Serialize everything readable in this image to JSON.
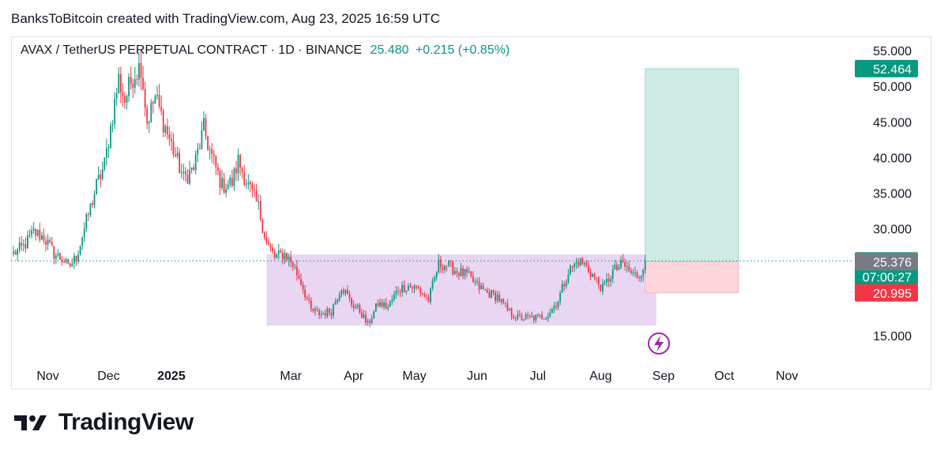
{
  "attribution": "BanksToBitcoin created with TradingView.com, Aug 23, 2025 16:59 UTC",
  "header": {
    "symbol": "AVAX / TetherUS PERPETUAL CONTRACT · 1D · BINANCE",
    "price": "25.480",
    "change": "+0.215 (+0.85%)"
  },
  "brand": {
    "name": "TradingView"
  },
  "colors": {
    "up": "#089981",
    "down": "#f23645",
    "range_box": "#e1c8ee",
    "target_zone": "#cfebe6",
    "stop_zone": "#fbd6da",
    "current_price": "#089981"
  },
  "icons": {
    "event": "lightning-icon",
    "logo": "tradingview-logo-icon"
  },
  "chart_data": {
    "type": "candlestick",
    "title": "AVAX / TetherUS PERPETUAL CONTRACT · 1D · BINANCE",
    "ylim": [
      15,
      55
    ],
    "y_ticks": [
      "55.000",
      "50.000",
      "45.000",
      "40.000",
      "35.000",
      "30.000",
      "15.000"
    ],
    "x_ticks": [
      "Nov",
      "Dec",
      "2025",
      "Mar",
      "Apr",
      "May",
      "Jun",
      "Jul",
      "Aug",
      "Sep",
      "Oct",
      "Nov"
    ],
    "x_range": [
      "2024-10-15",
      "2025-11-22"
    ],
    "price_labels": [
      {
        "value": "52.464",
        "kind": "target"
      },
      {
        "value": "25.480",
        "sub": "07:00:27",
        "kind": "current"
      },
      {
        "value": "25.376",
        "kind": "entry"
      },
      {
        "value": "20.995",
        "kind": "stop"
      }
    ],
    "close_series": [
      [
        "2024-10-15",
        26.5
      ],
      [
        "2024-10-20",
        27.5
      ],
      [
        "2024-10-25",
        29.5
      ],
      [
        "2024-10-30",
        28.8
      ],
      [
        "2024-11-04",
        26.5
      ],
      [
        "2024-11-09",
        25.5
      ],
      [
        "2024-11-11",
        24.5
      ],
      [
        "2024-11-15",
        26.0
      ],
      [
        "2024-11-20",
        31.0
      ],
      [
        "2024-11-25",
        36.0
      ],
      [
        "2024-11-29",
        39.0
      ],
      [
        "2024-12-03",
        46.0
      ],
      [
        "2024-12-06",
        51.0
      ],
      [
        "2024-12-09",
        48.0
      ],
      [
        "2024-12-13",
        51.5
      ],
      [
        "2024-12-17",
        53.0
      ],
      [
        "2024-12-20",
        45.0
      ],
      [
        "2024-12-24",
        48.5
      ],
      [
        "2024-12-28",
        45.0
      ],
      [
        "2025-01-02",
        41.0
      ],
      [
        "2025-01-07",
        37.0
      ],
      [
        "2025-01-12",
        38.5
      ],
      [
        "2025-01-17",
        44.0
      ],
      [
        "2025-01-21",
        40.0
      ],
      [
        "2025-01-26",
        36.0
      ],
      [
        "2025-01-31",
        36.5
      ],
      [
        "2025-02-03",
        39.5
      ],
      [
        "2025-02-08",
        36.0
      ],
      [
        "2025-02-13",
        33.0
      ],
      [
        "2025-02-17",
        28.0
      ],
      [
        "2025-02-21",
        26.0
      ],
      [
        "2025-02-26",
        26.5
      ],
      [
        "2025-03-02",
        25.0
      ],
      [
        "2025-03-06",
        22.5
      ],
      [
        "2025-03-11",
        18.5
      ],
      [
        "2025-03-16",
        18.0
      ],
      [
        "2025-03-21",
        18.5
      ],
      [
        "2025-03-26",
        22.0
      ],
      [
        "2025-03-31",
        19.5
      ],
      [
        "2025-04-04",
        18.5
      ],
      [
        "2025-04-08",
        16.5
      ],
      [
        "2025-04-13",
        19.5
      ],
      [
        "2025-04-18",
        19.0
      ],
      [
        "2025-04-23",
        21.5
      ],
      [
        "2025-04-28",
        22.0
      ],
      [
        "2025-05-03",
        21.5
      ],
      [
        "2025-05-08",
        20.0
      ],
      [
        "2025-05-13",
        25.0
      ],
      [
        "2025-05-17",
        25.0
      ],
      [
        "2025-05-22",
        24.0
      ],
      [
        "2025-05-27",
        23.5
      ],
      [
        "2025-06-01",
        22.0
      ],
      [
        "2025-06-06",
        21.0
      ],
      [
        "2025-06-11",
        20.5
      ],
      [
        "2025-06-16",
        18.5
      ],
      [
        "2025-06-21",
        17.5
      ],
      [
        "2025-06-26",
        17.5
      ],
      [
        "2025-07-01",
        17.5
      ],
      [
        "2025-07-06",
        18.0
      ],
      [
        "2025-07-11",
        20.0
      ],
      [
        "2025-07-16",
        24.0
      ],
      [
        "2025-07-21",
        25.5
      ],
      [
        "2025-07-24",
        25.0
      ],
      [
        "2025-07-28",
        23.5
      ],
      [
        "2025-08-02",
        21.5
      ],
      [
        "2025-08-07",
        24.0
      ],
      [
        "2025-08-12",
        25.0
      ],
      [
        "2025-08-17",
        23.5
      ],
      [
        "2025-08-20",
        23.5
      ],
      [
        "2025-08-23",
        25.48
      ]
    ],
    "annotations": {
      "range_box": {
        "x": [
          "2025-02-17",
          "2025-08-23"
        ],
        "y": [
          16.4,
          26.4
        ]
      },
      "position": {
        "x": [
          "2025-08-23",
          "2025-10-08"
        ],
        "entry": 25.376,
        "target": 52.464,
        "stop": 20.995
      },
      "current_price_line": 25.48
    }
  }
}
